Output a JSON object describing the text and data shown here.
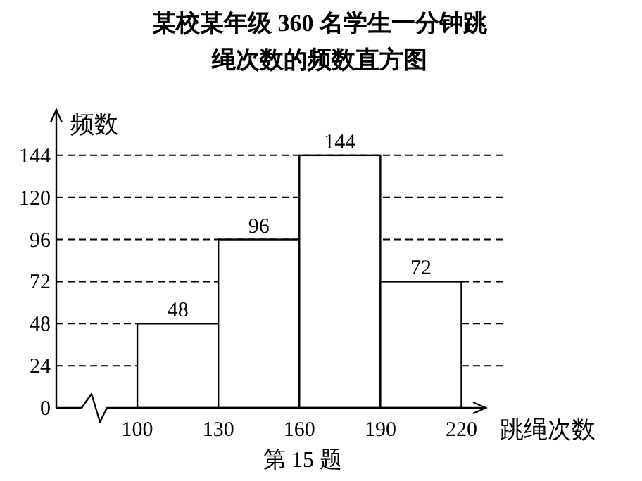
{
  "chart_data": {
    "type": "histogram",
    "title": "某校某年级 360 名学生一分钟跳绳次数的频数直方图",
    "xlabel": "跳绳次数",
    "ylabel": "频数",
    "bins": [
      100,
      130,
      160,
      190,
      220
    ],
    "values": [
      48,
      96,
      144,
      72
    ],
    "color": "#ffffff",
    "xlim": [
      70,
      229
    ],
    "xticks": [
      100,
      130,
      160,
      190,
      220
    ],
    "ylim": [
      0,
      170
    ],
    "yticks": [
      0,
      24,
      48,
      72,
      96,
      120,
      144
    ],
    "grid": "y",
    "data_labels": true,
    "annotations": [
      "第 15 题"
    ]
  }
}
